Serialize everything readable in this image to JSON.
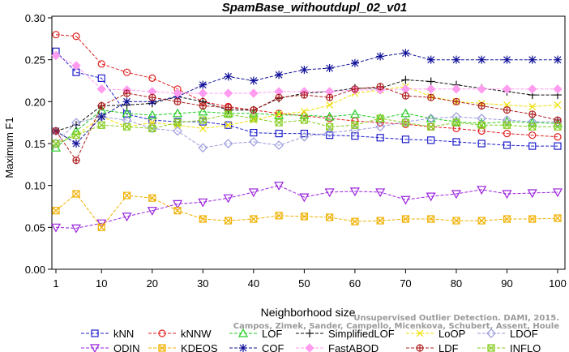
{
  "chart_data": {
    "type": "line",
    "title": "SpamBase_withoutdupl_02_v01",
    "xlabel": "Neighborhood size",
    "ylabel": "Maximum F1",
    "xlim": [
      0,
      100
    ],
    "ylim": [
      0.0,
      0.3
    ],
    "x_ticks": [
      "1",
      "10",
      "20",
      "30",
      "40",
      "50",
      "60",
      "70",
      "80",
      "90",
      "100"
    ],
    "y_ticks": [
      "0.00",
      "0.05",
      "0.10",
      "0.15",
      "0.20",
      "0.25",
      "0.30"
    ],
    "grid": false,
    "legend_position": "bottom",
    "watermark": [
      "Campos, Zimek, Sander, Campello, Micenkova, Schubert, Assent, Houle",
      "Unsupervised Outlier Detection. DAMI, 2015."
    ],
    "x": [
      1,
      5,
      10,
      15,
      20,
      25,
      30,
      35,
      40,
      45,
      50,
      55,
      60,
      65,
      70,
      75,
      80,
      85,
      90,
      95,
      100
    ],
    "series": [
      {
        "name": "kNN",
        "color": "#1f1fcc",
        "marker": "square",
        "values": [
          0.26,
          0.235,
          0.228,
          0.185,
          0.178,
          0.176,
          0.176,
          0.172,
          0.163,
          0.162,
          0.162,
          0.16,
          0.159,
          0.157,
          0.155,
          0.154,
          0.152,
          0.15,
          0.148,
          0.147,
          0.147
        ]
      },
      {
        "name": "kNNW",
        "color": "#e02020",
        "marker": "circle",
        "values": [
          0.28,
          0.278,
          0.245,
          0.235,
          0.228,
          0.215,
          0.2,
          0.194,
          0.19,
          0.186,
          0.183,
          0.18,
          0.177,
          0.175,
          0.173,
          0.17,
          0.168,
          0.165,
          0.162,
          0.16,
          0.158
        ]
      },
      {
        "name": "LOF",
        "color": "#22cc22",
        "marker": "triangle-up",
        "values": [
          0.145,
          0.165,
          0.19,
          0.186,
          0.184,
          0.186,
          0.188,
          0.186,
          0.186,
          0.184,
          0.184,
          0.182,
          0.185,
          0.18,
          0.186,
          0.18,
          0.176,
          0.174,
          0.176,
          0.175,
          0.174
        ]
      },
      {
        "name": "SimplifiedLOF",
        "color": "#111111",
        "marker": "plus",
        "values": [
          0.165,
          0.172,
          0.195,
          0.196,
          0.198,
          0.206,
          0.2,
          0.19,
          0.19,
          0.204,
          0.21,
          0.212,
          0.216,
          0.216,
          0.226,
          0.224,
          0.22,
          0.216,
          0.212,
          0.208,
          0.208
        ]
      },
      {
        "name": "LoOP",
        "color": "#f0e000",
        "marker": "x",
        "values": [
          0.15,
          0.16,
          0.182,
          0.17,
          0.175,
          0.172,
          0.168,
          0.172,
          0.178,
          0.185,
          0.188,
          0.196,
          0.21,
          0.214,
          0.218,
          0.206,
          0.2,
          0.198,
          0.196,
          0.194,
          0.196
        ]
      },
      {
        "name": "LDOF",
        "color": "#9b9bdd",
        "marker": "diamond",
        "values": [
          0.15,
          0.175,
          0.182,
          0.178,
          0.168,
          0.165,
          0.145,
          0.15,
          0.152,
          0.148,
          0.158,
          0.163,
          0.166,
          0.17,
          0.176,
          0.18,
          0.182,
          0.18,
          0.178,
          0.176,
          0.176
        ]
      },
      {
        "name": "ODIN",
        "color": "#9a22dd",
        "marker": "triangle-down",
        "values": [
          0.05,
          0.049,
          0.055,
          0.063,
          0.07,
          0.078,
          0.08,
          0.085,
          0.092,
          0.1,
          0.086,
          0.092,
          0.093,
          0.092,
          0.083,
          0.087,
          0.09,
          0.095,
          0.09,
          0.091,
          0.092
        ]
      },
      {
        "name": "KDEOS",
        "color": "#f0b000",
        "marker": "square-x",
        "values": [
          0.07,
          0.09,
          0.05,
          0.088,
          0.085,
          0.07,
          0.06,
          0.058,
          0.06,
          0.064,
          0.063,
          0.062,
          0.057,
          0.058,
          0.06,
          0.06,
          0.058,
          0.058,
          0.06,
          0.06,
          0.061
        ]
      },
      {
        "name": "COF",
        "color": "#111199",
        "marker": "asterisk",
        "values": [
          0.165,
          0.15,
          0.182,
          0.2,
          0.2,
          0.206,
          0.22,
          0.23,
          0.225,
          0.232,
          0.238,
          0.24,
          0.246,
          0.254,
          0.258,
          0.25,
          0.25,
          0.25,
          0.25,
          0.25,
          0.25
        ]
      },
      {
        "name": "FastABOD",
        "color": "#ff9cf0",
        "marker": "diamond-filled",
        "values": [
          0.255,
          0.243,
          0.215,
          0.214,
          0.212,
          0.21,
          0.21,
          0.21,
          0.21,
          0.212,
          0.212,
          0.212,
          0.214,
          0.214,
          0.215,
          0.215,
          0.215,
          0.215,
          0.215,
          0.215,
          0.215
        ]
      },
      {
        "name": "LDF",
        "color": "#b02020",
        "marker": "circle-plus",
        "values": [
          0.165,
          0.13,
          0.195,
          0.21,
          0.205,
          0.2,
          0.195,
          0.193,
          0.19,
          0.205,
          0.208,
          0.205,
          0.215,
          0.218,
          0.207,
          0.205,
          0.2,
          0.195,
          0.19,
          0.185,
          0.178
        ]
      },
      {
        "name": "INFLO",
        "color": "#88cc22",
        "marker": "square-x",
        "values": [
          0.15,
          0.16,
          0.172,
          0.17,
          0.168,
          0.175,
          0.178,
          0.185,
          0.18,
          0.175,
          0.178,
          0.17,
          0.172,
          0.18,
          0.175,
          0.17,
          0.175,
          0.172,
          0.172,
          0.17,
          0.17
        ]
      }
    ]
  }
}
